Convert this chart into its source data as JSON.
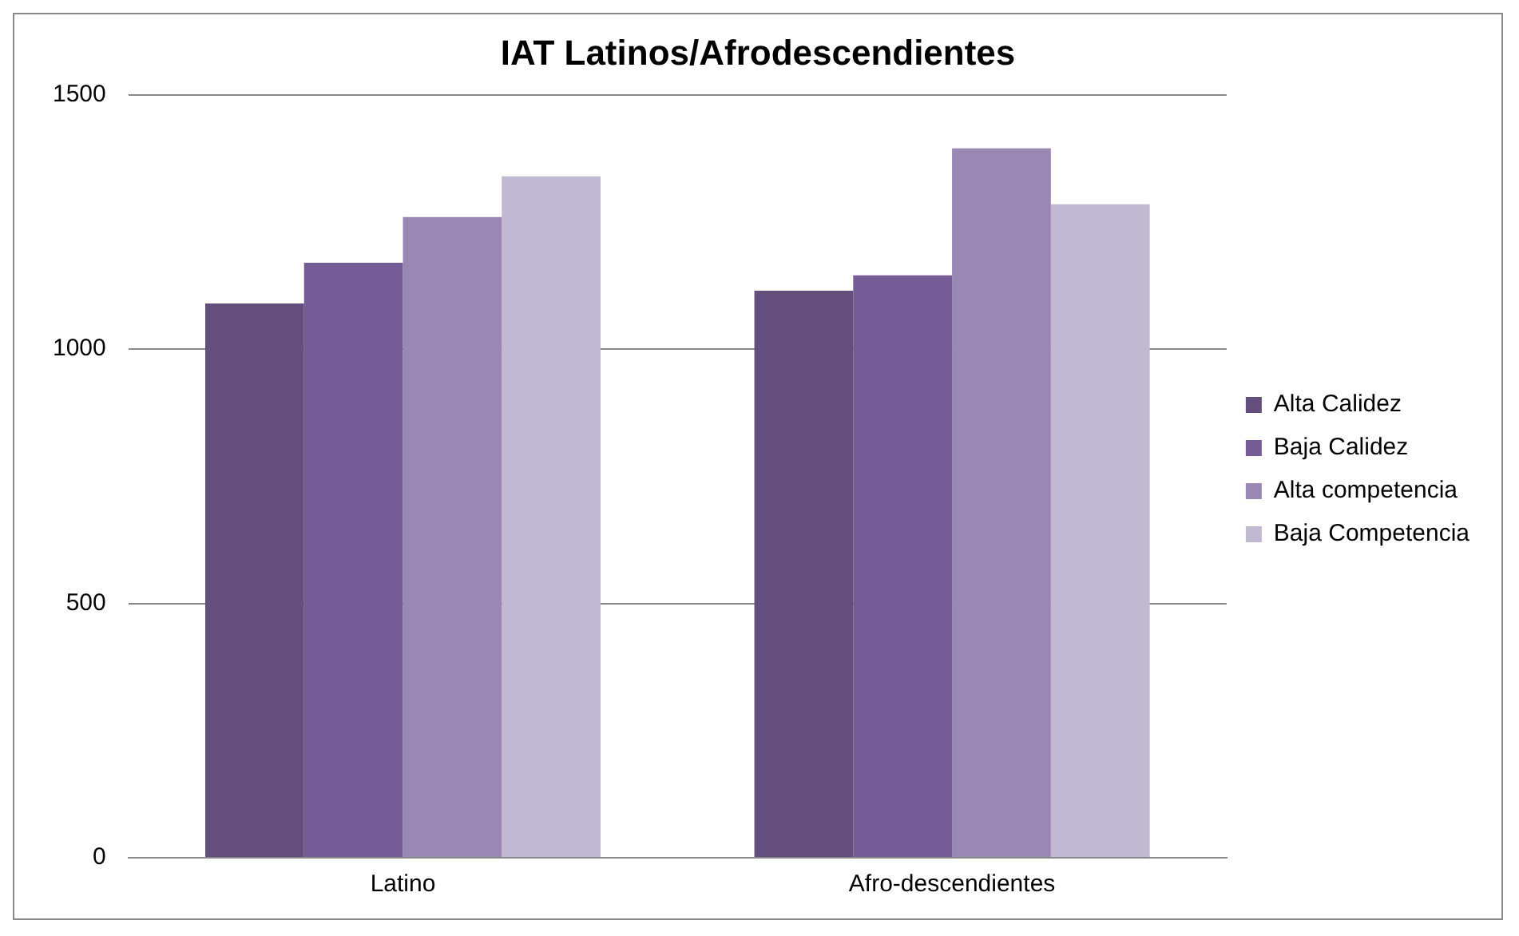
{
  "chart_data": {
    "type": "bar",
    "title": "IAT Latinos/Afrodescendientes",
    "categories": [
      "Latino",
      "Afro-descendientes"
    ],
    "series": [
      {
        "name": "Alta Calidez",
        "color": "#634e7d",
        "values": [
          1090,
          1115
        ]
      },
      {
        "name": "Baja Calidez",
        "color": "#765c96",
        "values": [
          1170,
          1145
        ]
      },
      {
        "name": "Alta competencia",
        "color": "#9a88b4",
        "values": [
          1260,
          1395
        ]
      },
      {
        "name": "Baja Competencia",
        "color": "#c1b8d1",
        "values": [
          1340,
          1285
        ]
      }
    ],
    "ylim": [
      0,
      1500
    ],
    "yticks": [
      0,
      500,
      1000,
      1500
    ],
    "grid": "y",
    "legend": "right"
  }
}
